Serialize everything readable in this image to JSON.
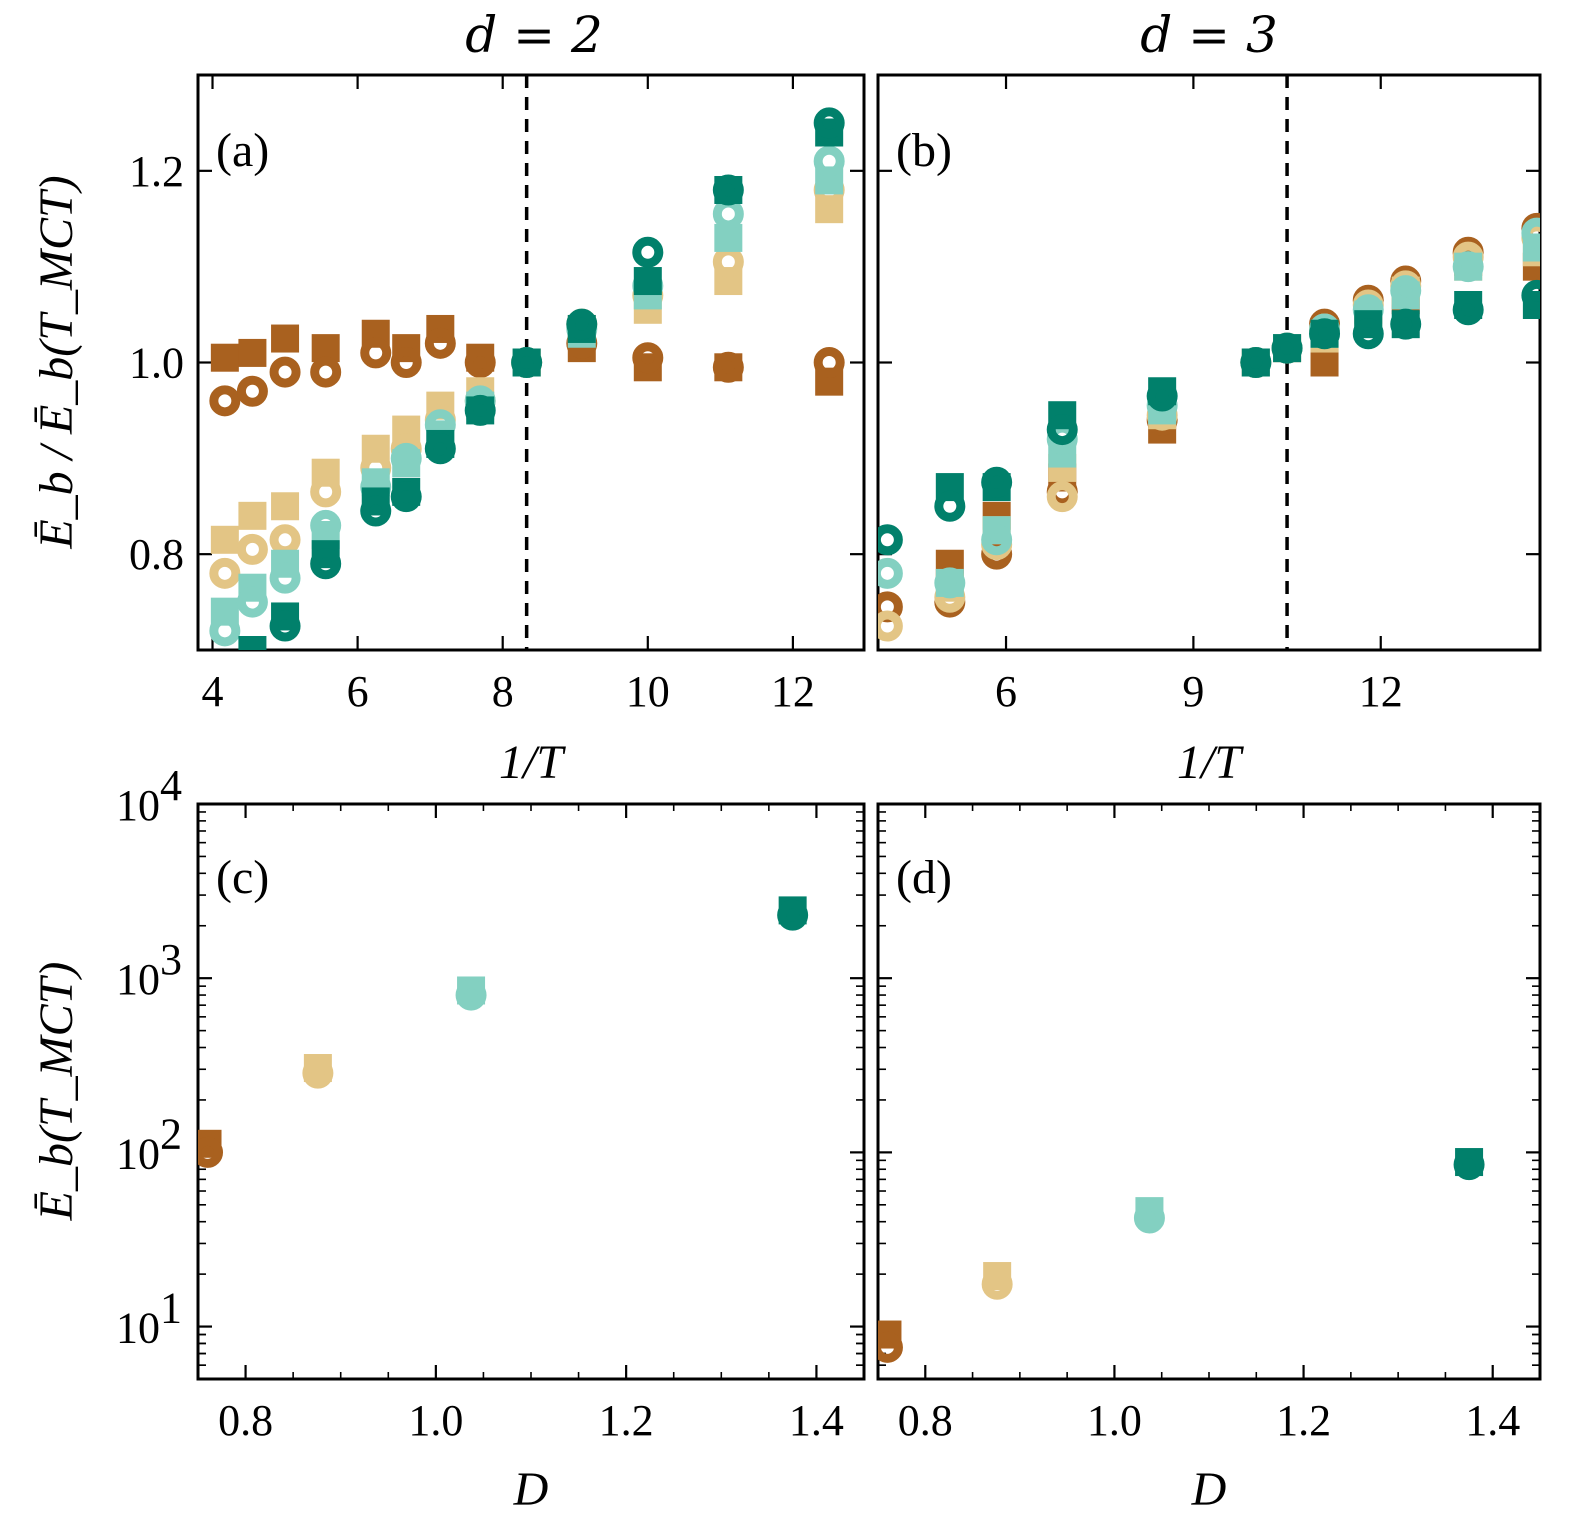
{
  "colors": {
    "brown": "#a9611f",
    "tan": "#e3c585",
    "mint": "#83d0c1",
    "teal": "#01806b"
  },
  "titles": {
    "a": "d = 2",
    "b": "d = 3"
  },
  "panel_labels": {
    "a": "(a)",
    "b": "(b)",
    "c": "(c)",
    "d": "(d)"
  },
  "ylabels": {
    "top": "Ē_b / Ē_b(T_MCT)",
    "bottom": "Ē_b(T_MCT)"
  },
  "chart_data": [
    {
      "panel": "a",
      "type": "scatter",
      "xlabel": "1/T",
      "ylabel": "Ē_b / Ē_b(T_MCT)",
      "xlim": [
        3.8,
        12.98
      ],
      "ylim": [
        0.7,
        1.3
      ],
      "yscale": "linear",
      "xticks": [
        4,
        6,
        8,
        10,
        12
      ],
      "yticks": [
        0.8,
        1.0,
        1.2
      ],
      "xtick_labels": [
        "4",
        "6",
        "8",
        "10",
        "12"
      ],
      "ytick_labels": [
        "0.8",
        "1.0",
        "1.2"
      ],
      "vline": 8.33,
      "series": [
        {
          "color": "brown",
          "marker": "square",
          "x": [
            4.17,
            4.55,
            5.0,
            5.56,
            6.25,
            6.67,
            7.14,
            7.69,
            8.33,
            9.09,
            10.0,
            11.11,
            12.5
          ],
          "y": [
            1.005,
            1.01,
            1.025,
            1.015,
            1.03,
            1.015,
            1.035,
            1.005,
            1.0,
            1.015,
            0.995,
            0.995,
            0.98
          ]
        },
        {
          "color": "brown",
          "marker": "ring",
          "x": [
            4.17,
            4.55,
            5.0,
            5.56,
            6.25,
            6.67,
            7.14,
            7.69,
            8.33,
            9.09,
            10.0,
            11.11,
            12.5
          ],
          "y": [
            0.96,
            0.97,
            0.99,
            0.99,
            1.01,
            1.0,
            1.02,
            1.0,
            1.0,
            1.02,
            1.005,
            0.995,
            1.0
          ]
        },
        {
          "color": "tan",
          "marker": "square",
          "x": [
            4.17,
            4.55,
            5.0,
            5.56,
            6.25,
            6.67,
            7.14,
            7.69,
            8.33,
            9.09,
            10.0,
            11.11,
            12.5
          ],
          "y": [
            0.815,
            0.84,
            0.85,
            0.885,
            0.91,
            0.93,
            0.955,
            0.97,
            1.0,
            1.035,
            1.055,
            1.085,
            1.16
          ]
        },
        {
          "color": "tan",
          "marker": "ring",
          "x": [
            4.17,
            4.55,
            5.0,
            5.56,
            6.25,
            6.67,
            7.14,
            7.69,
            8.33,
            9.09,
            10.0,
            11.11,
            12.5
          ],
          "y": [
            0.78,
            0.805,
            0.815,
            0.865,
            0.89,
            0.91,
            0.94,
            0.96,
            1.0,
            1.04,
            1.07,
            1.105,
            1.18
          ]
        },
        {
          "color": "mint",
          "marker": "square",
          "x": [
            4.17,
            4.55,
            5.0,
            5.56,
            6.25,
            6.67,
            7.14,
            7.69,
            8.33,
            9.09,
            10.0,
            11.11,
            12.5
          ],
          "y": [
            0.74,
            0.765,
            0.79,
            0.82,
            0.875,
            0.895,
            0.925,
            0.955,
            1.0,
            1.03,
            1.07,
            1.13,
            1.19
          ]
        },
        {
          "color": "mint",
          "marker": "ring",
          "x": [
            4.17,
            4.55,
            5.0,
            5.56,
            6.25,
            6.67,
            7.14,
            7.69,
            8.33,
            9.09,
            10.0,
            11.11,
            12.5
          ],
          "y": [
            0.72,
            0.75,
            0.775,
            0.83,
            0.87,
            0.9,
            0.935,
            0.96,
            1.0,
            1.035,
            1.08,
            1.155,
            1.21
          ]
        },
        {
          "color": "teal",
          "marker": "square",
          "x": [
            4.55,
            5.0,
            5.56,
            6.25,
            6.67,
            7.14,
            7.69,
            8.33,
            9.09,
            10.0,
            11.11,
            12.5
          ],
          "y": [
            0.7,
            0.735,
            0.8,
            0.855,
            0.865,
            0.915,
            0.95,
            1.0,
            1.035,
            1.085,
            1.18,
            1.24
          ]
        },
        {
          "color": "teal",
          "marker": "ring",
          "x": [
            5.0,
            5.56,
            6.25,
            6.67,
            7.14,
            7.69,
            8.33,
            9.09,
            10.0,
            11.11,
            12.5
          ],
          "y": [
            0.725,
            0.79,
            0.845,
            0.86,
            0.91,
            0.95,
            1.0,
            1.04,
            1.115,
            1.18,
            1.25
          ]
        }
      ]
    },
    {
      "panel": "b",
      "type": "scatter",
      "xlabel": "1/T",
      "ylabel": "",
      "xlim": [
        3.95,
        14.55
      ],
      "ylim": [
        0.7,
        1.3
      ],
      "yscale": "linear",
      "xticks": [
        6,
        9,
        12
      ],
      "yticks": [
        0.8,
        1.0,
        1.2
      ],
      "xtick_labels": [
        "6",
        "9",
        "12"
      ],
      "ytick_labels": [],
      "vline": 10.5,
      "series": [
        {
          "color": "brown",
          "marker": "square",
          "x": [
            5.1,
            5.85,
            6.9,
            8.5,
            10.0,
            10.5,
            11.1,
            11.8,
            12.4,
            13.4,
            14.5
          ],
          "y": [
            0.79,
            0.84,
            0.88,
            0.93,
            1.0,
            1.015,
            1.0,
            1.055,
            1.065,
            1.105,
            1.1
          ]
        },
        {
          "color": "brown",
          "marker": "ring",
          "x": [
            4.1,
            5.1,
            5.85,
            6.9,
            8.5,
            10.0,
            10.5,
            11.1,
            11.8,
            12.4,
            13.4,
            14.5
          ],
          "y": [
            0.745,
            0.75,
            0.8,
            0.865,
            0.94,
            1.0,
            1.015,
            1.04,
            1.065,
            1.085,
            1.115,
            1.14
          ]
        },
        {
          "color": "tan",
          "marker": "square",
          "x": [
            5.1,
            5.85,
            6.9,
            8.5,
            10.0,
            10.5,
            11.1,
            11.8,
            12.4,
            13.4,
            14.5
          ],
          "y": [
            0.765,
            0.825,
            0.89,
            0.945,
            1.0,
            1.015,
            1.025,
            1.05,
            1.075,
            1.1,
            1.115
          ]
        },
        {
          "color": "tan",
          "marker": "ring",
          "x": [
            4.1,
            5.1,
            5.85,
            6.9,
            8.5,
            10.0,
            10.5,
            11.1,
            11.8,
            12.4,
            13.4,
            14.5
          ],
          "y": [
            0.725,
            0.755,
            0.81,
            0.86,
            0.945,
            1.0,
            1.015,
            1.035,
            1.06,
            1.08,
            1.11,
            1.13
          ]
        },
        {
          "color": "mint",
          "marker": "square",
          "x": [
            5.1,
            5.85,
            6.9,
            8.5,
            10.0,
            10.5,
            11.1,
            11.8,
            12.4,
            13.4,
            14.5
          ],
          "y": [
            0.77,
            0.825,
            0.905,
            0.95,
            1.0,
            1.015,
            1.03,
            1.05,
            1.07,
            1.1,
            1.12
          ]
        },
        {
          "color": "mint",
          "marker": "ring",
          "x": [
            4.1,
            5.1,
            5.85,
            6.9,
            8.5,
            10.0,
            10.5,
            11.1,
            11.8,
            12.4,
            13.4,
            14.5
          ],
          "y": [
            0.78,
            0.77,
            0.815,
            0.92,
            0.955,
            1.0,
            1.015,
            1.035,
            1.055,
            1.075,
            1.1,
            1.135
          ]
        },
        {
          "color": "teal",
          "marker": "square",
          "x": [
            5.1,
            5.85,
            6.9,
            8.5,
            10.0,
            10.5,
            11.1,
            11.8,
            12.4,
            13.4,
            14.5
          ],
          "y": [
            0.87,
            0.87,
            0.945,
            0.97,
            1.0,
            1.015,
            1.03,
            1.04,
            1.04,
            1.06,
            1.06
          ]
        },
        {
          "color": "teal",
          "marker": "ring",
          "x": [
            4.1,
            5.1,
            5.85,
            6.9,
            8.5,
            10.0,
            10.5,
            11.1,
            11.8,
            12.4,
            13.4,
            14.5
          ],
          "y": [
            0.815,
            0.85,
            0.875,
            0.93,
            0.965,
            1.0,
            1.015,
            1.03,
            1.03,
            1.04,
            1.055,
            1.07
          ]
        }
      ]
    },
    {
      "panel": "c",
      "type": "scatter",
      "xlabel": "D",
      "ylabel": "Ē_b(T_MCT)",
      "xlim": [
        0.75,
        1.45
      ],
      "ylim": [
        5,
        10000
      ],
      "yscale": "log",
      "xticks": [
        0.8,
        1.0,
        1.2,
        1.4
      ],
      "yticks": [
        10,
        100,
        1000,
        10000
      ],
      "xtick_labels": [
        "0.8",
        "1.0",
        "1.2",
        "1.4"
      ],
      "ytick_labels": [
        [
          "10",
          "1"
        ],
        [
          "10",
          "2"
        ],
        [
          "10",
          "3"
        ],
        [
          "10",
          "4"
        ]
      ],
      "series": [
        {
          "color": "brown",
          "marker": "square",
          "x": [
            0.76
          ],
          "y": [
            112
          ]
        },
        {
          "color": "brown",
          "marker": "ring",
          "x": [
            0.76
          ],
          "y": [
            100
          ]
        },
        {
          "color": "tan",
          "marker": "square",
          "x": [
            0.876
          ],
          "y": [
            305
          ]
        },
        {
          "color": "tan",
          "marker": "ring",
          "x": [
            0.876
          ],
          "y": [
            285
          ]
        },
        {
          "color": "mint",
          "marker": "square",
          "x": [
            1.037
          ],
          "y": [
            850
          ]
        },
        {
          "color": "mint",
          "marker": "ring",
          "x": [
            1.037
          ],
          "y": [
            800
          ]
        },
        {
          "color": "teal",
          "marker": "square",
          "x": [
            1.375
          ],
          "y": [
            2450
          ]
        },
        {
          "color": "teal",
          "marker": "ring",
          "x": [
            1.375
          ],
          "y": [
            2300
          ]
        }
      ]
    },
    {
      "panel": "d",
      "type": "scatter",
      "xlabel": "D",
      "ylabel": "",
      "xlim": [
        0.75,
        1.45
      ],
      "ylim": [
        5,
        10000
      ],
      "yscale": "log",
      "xticks": [
        0.8,
        1.0,
        1.2,
        1.4
      ],
      "yticks": [
        10,
        100,
        1000,
        10000
      ],
      "xtick_labels": [
        "0.8",
        "1.0",
        "1.2",
        "1.4"
      ],
      "ytick_labels": [],
      "series": [
        {
          "color": "brown",
          "marker": "square",
          "x": [
            0.76
          ],
          "y": [
            9
          ]
        },
        {
          "color": "brown",
          "marker": "ring",
          "x": [
            0.76
          ],
          "y": [
            7.6
          ]
        },
        {
          "color": "tan",
          "marker": "square",
          "x": [
            0.876
          ],
          "y": [
            19.5
          ]
        },
        {
          "color": "tan",
          "marker": "ring",
          "x": [
            0.876
          ],
          "y": [
            17.5
          ]
        },
        {
          "color": "mint",
          "marker": "square",
          "x": [
            1.037
          ],
          "y": [
            46
          ]
        },
        {
          "color": "mint",
          "marker": "ring",
          "x": [
            1.037
          ],
          "y": [
            42
          ]
        },
        {
          "color": "teal",
          "marker": "square",
          "x": [
            1.375
          ],
          "y": [
            88
          ]
        },
        {
          "color": "teal",
          "marker": "ring",
          "x": [
            1.375
          ],
          "y": [
            85
          ]
        }
      ]
    }
  ]
}
